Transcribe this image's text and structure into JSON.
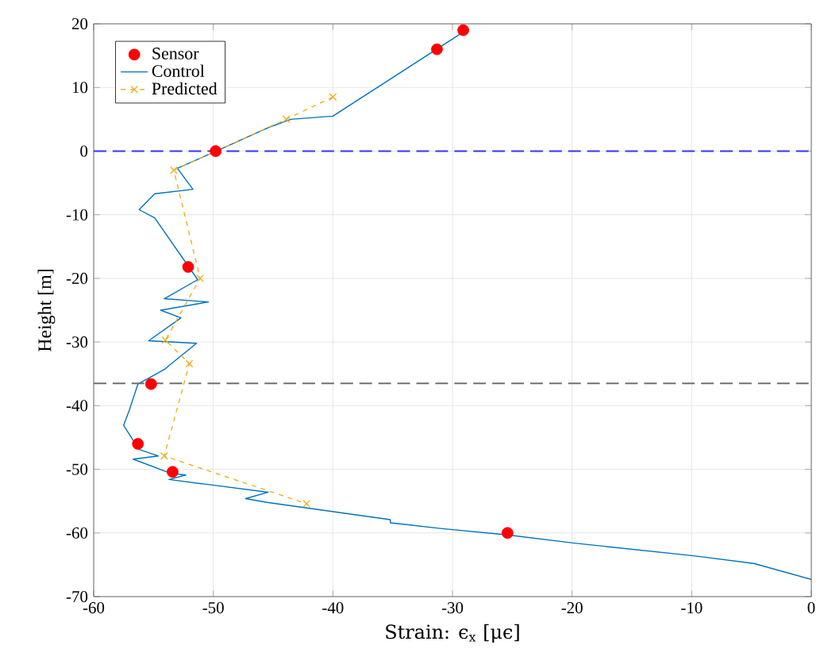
{
  "chart_data": {
    "type": "line",
    "xlabel": "Strain: ϵ$_{x}$ [μϵ]",
    "ylabel": "Height [m]",
    "xlim": [
      -60,
      0
    ],
    "ylim": [
      -70,
      20
    ],
    "xticks": [
      -60,
      -50,
      -40,
      -30,
      -20,
      -10,
      0
    ],
    "yticks": [
      -70,
      -60,
      -50,
      -40,
      -30,
      -20,
      -10,
      0,
      10,
      20
    ],
    "grid": true,
    "legend": "top left",
    "ref_lines": [
      {
        "axis": "y",
        "value": 0,
        "color": "#3333ff",
        "line_style": "dashed"
      },
      {
        "axis": "y",
        "value": -36.5,
        "color": "#707070",
        "line_style": "dashed"
      }
    ],
    "series": [
      {
        "name": "Sensor",
        "type": "scatter",
        "color": "#ff0000",
        "marker": "circle",
        "x": [
          -29.1,
          -31.3,
          -49.8,
          -52.1,
          -55.2,
          -56.3,
          -53.4,
          -25.4
        ],
        "values": [
          19,
          16,
          0,
          -18.2,
          -36.6,
          -46,
          -50.4,
          -60
        ]
      },
      {
        "name": "Control",
        "color": "#0072bd",
        "marker": "none",
        "line_style": "solid",
        "x": [
          0,
          -4.8,
          -9.8,
          -19.8,
          -25.4,
          -31,
          -35.2,
          -35.2,
          -45.5,
          -47.3,
          -45.4,
          -53.7,
          -52.3,
          -53.6,
          -56.7,
          -54.6,
          -56.2,
          -57.5,
          -57,
          -56.3,
          -54,
          -53.7,
          -51.4,
          -55.4,
          -52.7,
          -54.4,
          -50.4,
          -54.1,
          -51.3,
          -54.9,
          -56.2,
          -54.9,
          -51.7,
          -53,
          -50,
          -45.4,
          -43.5,
          -40,
          -29.1
        ],
        "values": [
          -67.3,
          -64.8,
          -63.6,
          -61.6,
          -60.3,
          -59.3,
          -58.4,
          -57.9,
          -55.2,
          -54.6,
          -53.6,
          -51.6,
          -50.9,
          -50.6,
          -48.4,
          -47.9,
          -46.9,
          -43.1,
          -40.6,
          -36.6,
          -34.2,
          -33.7,
          -30.2,
          -29.8,
          -26.2,
          -25,
          -23.7,
          -23.2,
          -20.2,
          -10.5,
          -9.2,
          -6.7,
          -6,
          -2.7,
          -0.2,
          3.7,
          5,
          5.5,
          18.7
        ]
      },
      {
        "name": "Predicted",
        "type": "line",
        "color": "#edb120",
        "marker": "cross",
        "line_style": "dashed",
        "x": [
          -40,
          -43.9,
          -53.3,
          -51.1,
          -54,
          -52,
          -54.1,
          -42.2
        ],
        "values": [
          8.5,
          5,
          -3,
          -20,
          -29.7,
          -33.4,
          -47.9,
          -55.4
        ]
      }
    ]
  }
}
